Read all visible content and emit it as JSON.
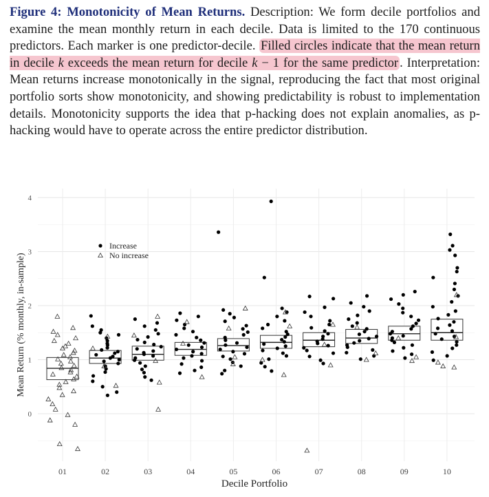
{
  "caption": {
    "label": "Figure 4: Monotonicity of Mean Returns.",
    "text_before": " Description: We form decile portfolios and examine the mean monthly return in each decile. Data is limited to the 170 continuous predictors. Each marker is one predictor-decile. ",
    "highlight_1": "Filled circles indicate that the mean return in decile ",
    "k1": "k",
    "highlight_2": " exceeds the mean return for decile ",
    "k2": "k",
    "highlight_3": " − 1 for the same predictor",
    "text_after": ". Interpretation: Mean returns increase monotonically in the signal, reproducing the fact that most original portfolio sorts show monotonicity, and showing predictability is robust to implementation details. Monotonicity supports the idea that p-hacking does not explain anomalies, as p-hacking would have to operate across the entire predictor distribution."
  },
  "chart_data": {
    "type": "scatter",
    "xlabel": "Decile Portfolio",
    "ylabel": "Mean Return (% monthly, in-sample)",
    "categories": [
      "01",
      "02",
      "03",
      "04",
      "05",
      "06",
      "07",
      "08",
      "09",
      "10"
    ],
    "ylim": [
      -0.9,
      4.2
    ],
    "yticks": [
      0,
      1,
      2,
      3,
      4
    ],
    "grid": true,
    "legend_position": "top-left",
    "legend": [
      {
        "label": "Increase",
        "marker": "filled-circle"
      },
      {
        "label": "No increase",
        "marker": "open-triangle"
      }
    ],
    "boxes": [
      {
        "q1": 0.63,
        "median": 0.84,
        "q3": 1.04
      },
      {
        "q1": 0.93,
        "median": 1.03,
        "q3": 1.17
      },
      {
        "q1": 0.99,
        "median": 1.1,
        "q3": 1.25
      },
      {
        "q1": 1.08,
        "median": 1.19,
        "q3": 1.32
      },
      {
        "q1": 1.16,
        "median": 1.26,
        "q3": 1.39
      },
      {
        "q1": 1.21,
        "median": 1.32,
        "q3": 1.45
      },
      {
        "q1": 1.24,
        "median": 1.36,
        "q3": 1.5
      },
      {
        "q1": 1.3,
        "median": 1.4,
        "q3": 1.56
      },
      {
        "q1": 1.36,
        "median": 1.48,
        "q3": 1.62
      },
      {
        "q1": 1.36,
        "median": 1.5,
        "q3": 1.75
      }
    ],
    "series": [
      {
        "name": "Increase",
        "points": [
          [
            2,
            1.81
          ],
          [
            2,
            1.62
          ],
          [
            2,
            1.55
          ],
          [
            2,
            1.5
          ],
          [
            2,
            1.46
          ],
          [
            2,
            1.4
          ],
          [
            2,
            1.35
          ],
          [
            2,
            1.3
          ],
          [
            2,
            1.27
          ],
          [
            2,
            1.22
          ],
          [
            2,
            1.18
          ],
          [
            2,
            1.15
          ],
          [
            2,
            1.12
          ],
          [
            2,
            1.09
          ],
          [
            2,
            1.06
          ],
          [
            2,
            1.03
          ],
          [
            2,
            1.0
          ],
          [
            2,
            0.97
          ],
          [
            2,
            0.93
          ],
          [
            2,
            0.88
          ],
          [
            2,
            0.83
          ],
          [
            2,
            0.77
          ],
          [
            2,
            0.7
          ],
          [
            2,
            0.6
          ],
          [
            2,
            0.5
          ],
          [
            2,
            0.4
          ],
          [
            2,
            0.34
          ],
          [
            3,
            1.75
          ],
          [
            3,
            1.68
          ],
          [
            3,
            1.62
          ],
          [
            3,
            1.55
          ],
          [
            3,
            1.48
          ],
          [
            3,
            1.42
          ],
          [
            3,
            1.37
          ],
          [
            3,
            1.32
          ],
          [
            3,
            1.28
          ],
          [
            3,
            1.24
          ],
          [
            3,
            1.2
          ],
          [
            3,
            1.16
          ],
          [
            3,
            1.13
          ],
          [
            3,
            1.1
          ],
          [
            3,
            1.07
          ],
          [
            3,
            1.03
          ],
          [
            3,
            0.99
          ],
          [
            3,
            0.94
          ],
          [
            3,
            0.88
          ],
          [
            3,
            0.82
          ],
          [
            3,
            0.76
          ],
          [
            3,
            0.68
          ],
          [
            3,
            0.62
          ],
          [
            4,
            1.86
          ],
          [
            4,
            1.8
          ],
          [
            4,
            1.73
          ],
          [
            4,
            1.65
          ],
          [
            4,
            1.58
          ],
          [
            4,
            1.52
          ],
          [
            4,
            1.46
          ],
          [
            4,
            1.41
          ],
          [
            4,
            1.36
          ],
          [
            4,
            1.31
          ],
          [
            4,
            1.27
          ],
          [
            4,
            1.23
          ],
          [
            4,
            1.19
          ],
          [
            4,
            1.15
          ],
          [
            4,
            1.11
          ],
          [
            4,
            1.07
          ],
          [
            4,
            1.03
          ],
          [
            4,
            0.98
          ],
          [
            4,
            0.92
          ],
          [
            4,
            0.86
          ],
          [
            4,
            0.8
          ],
          [
            4,
            0.75
          ],
          [
            5,
            3.36
          ],
          [
            5,
            1.92
          ],
          [
            5,
            1.85
          ],
          [
            5,
            1.78
          ],
          [
            5,
            1.71
          ],
          [
            5,
            1.63
          ],
          [
            5,
            1.57
          ],
          [
            5,
            1.51
          ],
          [
            5,
            1.46
          ],
          [
            5,
            1.41
          ],
          [
            5,
            1.36
          ],
          [
            5,
            1.31
          ],
          [
            5,
            1.27
          ],
          [
            5,
            1.23
          ],
          [
            5,
            1.19
          ],
          [
            5,
            1.15
          ],
          [
            5,
            1.11
          ],
          [
            5,
            1.06
          ],
          [
            5,
            1.01
          ],
          [
            5,
            0.95
          ],
          [
            5,
            0.88
          ],
          [
            5,
            0.8
          ],
          [
            5,
            0.74
          ],
          [
            6,
            3.93
          ],
          [
            6,
            2.52
          ],
          [
            6,
            1.95
          ],
          [
            6,
            1.88
          ],
          [
            6,
            1.8
          ],
          [
            6,
            1.72
          ],
          [
            6,
            1.65
          ],
          [
            6,
            1.58
          ],
          [
            6,
            1.52
          ],
          [
            6,
            1.47
          ],
          [
            6,
            1.42
          ],
          [
            6,
            1.37
          ],
          [
            6,
            1.33
          ],
          [
            6,
            1.29
          ],
          [
            6,
            1.25
          ],
          [
            6,
            1.21
          ],
          [
            6,
            1.17
          ],
          [
            6,
            1.12
          ],
          [
            6,
            1.07
          ],
          [
            6,
            1.01
          ],
          [
            6,
            0.94
          ],
          [
            6,
            0.87
          ],
          [
            6,
            0.79
          ],
          [
            7,
            2.17
          ],
          [
            7,
            2.13
          ],
          [
            7,
            1.97
          ],
          [
            7,
            1.88
          ],
          [
            7,
            1.8
          ],
          [
            7,
            1.72
          ],
          [
            7,
            1.65
          ],
          [
            7,
            1.59
          ],
          [
            7,
            1.53
          ],
          [
            7,
            1.48
          ],
          [
            7,
            1.43
          ],
          [
            7,
            1.38
          ],
          [
            7,
            1.34
          ],
          [
            7,
            1.3
          ],
          [
            7,
            1.26
          ],
          [
            7,
            1.22
          ],
          [
            7,
            1.17
          ],
          [
            7,
            1.12
          ],
          [
            7,
            1.06
          ],
          [
            7,
            0.99
          ],
          [
            7,
            0.93
          ],
          [
            8,
            2.18
          ],
          [
            8,
            2.05
          ],
          [
            8,
            1.98
          ],
          [
            8,
            1.9
          ],
          [
            8,
            1.82
          ],
          [
            8,
            1.75
          ],
          [
            8,
            1.68
          ],
          [
            8,
            1.62
          ],
          [
            8,
            1.57
          ],
          [
            8,
            1.52
          ],
          [
            8,
            1.47
          ],
          [
            8,
            1.43
          ],
          [
            8,
            1.39
          ],
          [
            8,
            1.35
          ],
          [
            8,
            1.31
          ],
          [
            8,
            1.27
          ],
          [
            8,
            1.23
          ],
          [
            8,
            1.18
          ],
          [
            8,
            1.13
          ],
          [
            8,
            1.07
          ],
          [
            8,
            1.01
          ],
          [
            9,
            2.26
          ],
          [
            9,
            2.2
          ],
          [
            9,
            2.12
          ],
          [
            9,
            2.03
          ],
          [
            9,
            1.95
          ],
          [
            9,
            1.87
          ],
          [
            9,
            1.8
          ],
          [
            9,
            1.73
          ],
          [
            9,
            1.67
          ],
          [
            9,
            1.62
          ],
          [
            9,
            1.57
          ],
          [
            9,
            1.52
          ],
          [
            9,
            1.48
          ],
          [
            9,
            1.44
          ],
          [
            9,
            1.4
          ],
          [
            9,
            1.36
          ],
          [
            9,
            1.32
          ],
          [
            9,
            1.27
          ],
          [
            9,
            1.22
          ],
          [
            9,
            1.16
          ],
          [
            9,
            1.1
          ],
          [
            9,
            1.03
          ],
          [
            10,
            3.32
          ],
          [
            10,
            3.11
          ],
          [
            10,
            3.03
          ],
          [
            10,
            2.93
          ],
          [
            10,
            2.7
          ],
          [
            10,
            2.63
          ],
          [
            10,
            2.52
          ],
          [
            10,
            2.41
          ],
          [
            10,
            2.3
          ],
          [
            10,
            2.18
          ],
          [
            10,
            2.07
          ],
          [
            10,
            1.98
          ],
          [
            10,
            1.9
          ],
          [
            10,
            1.83
          ],
          [
            10,
            1.76
          ],
          [
            10,
            1.7
          ],
          [
            10,
            1.64
          ],
          [
            10,
            1.58
          ],
          [
            10,
            1.53
          ],
          [
            10,
            1.48
          ],
          [
            10,
            1.43
          ],
          [
            10,
            1.38
          ],
          [
            10,
            1.33
          ],
          [
            10,
            1.27
          ],
          [
            10,
            1.21
          ],
          [
            10,
            1.14
          ],
          [
            10,
            1.07
          ],
          [
            10,
            0.99
          ]
        ]
      },
      {
        "name": "No increase",
        "points": [
          [
            1,
            1.8
          ],
          [
            1,
            1.59
          ],
          [
            1,
            1.52
          ],
          [
            1,
            1.46
          ],
          [
            1,
            1.4
          ],
          [
            1,
            1.35
          ],
          [
            1,
            1.3
          ],
          [
            1,
            1.25
          ],
          [
            1,
            1.21
          ],
          [
            1,
            1.17
          ],
          [
            1,
            1.13
          ],
          [
            1,
            1.09
          ],
          [
            1,
            1.05
          ],
          [
            1,
            1.01
          ],
          [
            1,
            0.97
          ],
          [
            1,
            0.93
          ],
          [
            1,
            0.89
          ],
          [
            1,
            0.85
          ],
          [
            1,
            0.81
          ],
          [
            1,
            0.77
          ],
          [
            1,
            0.73
          ],
          [
            1,
            0.69
          ],
          [
            1,
            0.64
          ],
          [
            1,
            0.59
          ],
          [
            1,
            0.54
          ],
          [
            1,
            0.48
          ],
          [
            1,
            0.42
          ],
          [
            1,
            0.35
          ],
          [
            1,
            0.27
          ],
          [
            1,
            0.18
          ],
          [
            1,
            0.08
          ],
          [
            1,
            -0.02
          ],
          [
            1,
            -0.12
          ],
          [
            1,
            -0.2
          ],
          [
            1,
            -0.56
          ],
          [
            1,
            -0.65
          ],
          [
            2,
            1.43
          ],
          [
            2,
            1.21
          ],
          [
            2,
            0.88
          ],
          [
            2,
            0.52
          ],
          [
            3,
            1.8
          ],
          [
            3,
            1.45
          ],
          [
            3,
            0.98
          ],
          [
            3,
            0.58
          ],
          [
            3,
            0.08
          ],
          [
            4,
            1.7
          ],
          [
            4,
            1.3
          ],
          [
            4,
            0.68
          ],
          [
            5,
            1.95
          ],
          [
            5,
            1.58
          ],
          [
            5,
            1.05
          ],
          [
            5,
            0.92
          ],
          [
            6,
            1.88
          ],
          [
            6,
            1.62
          ],
          [
            6,
            1.0
          ],
          [
            6,
            0.72
          ],
          [
            7,
            1.65
          ],
          [
            7,
            1.28
          ],
          [
            7,
            0.9
          ],
          [
            7,
            -0.68
          ],
          [
            8,
            1.6
          ],
          [
            8,
            1.12
          ],
          [
            8,
            1.0
          ],
          [
            9,
            1.4
          ],
          [
            9,
            1.05
          ],
          [
            9,
            0.98
          ],
          [
            10,
            2.2
          ],
          [
            10,
            1.42
          ],
          [
            10,
            0.95
          ],
          [
            10,
            0.88
          ],
          [
            10,
            0.86
          ]
        ]
      }
    ]
  }
}
